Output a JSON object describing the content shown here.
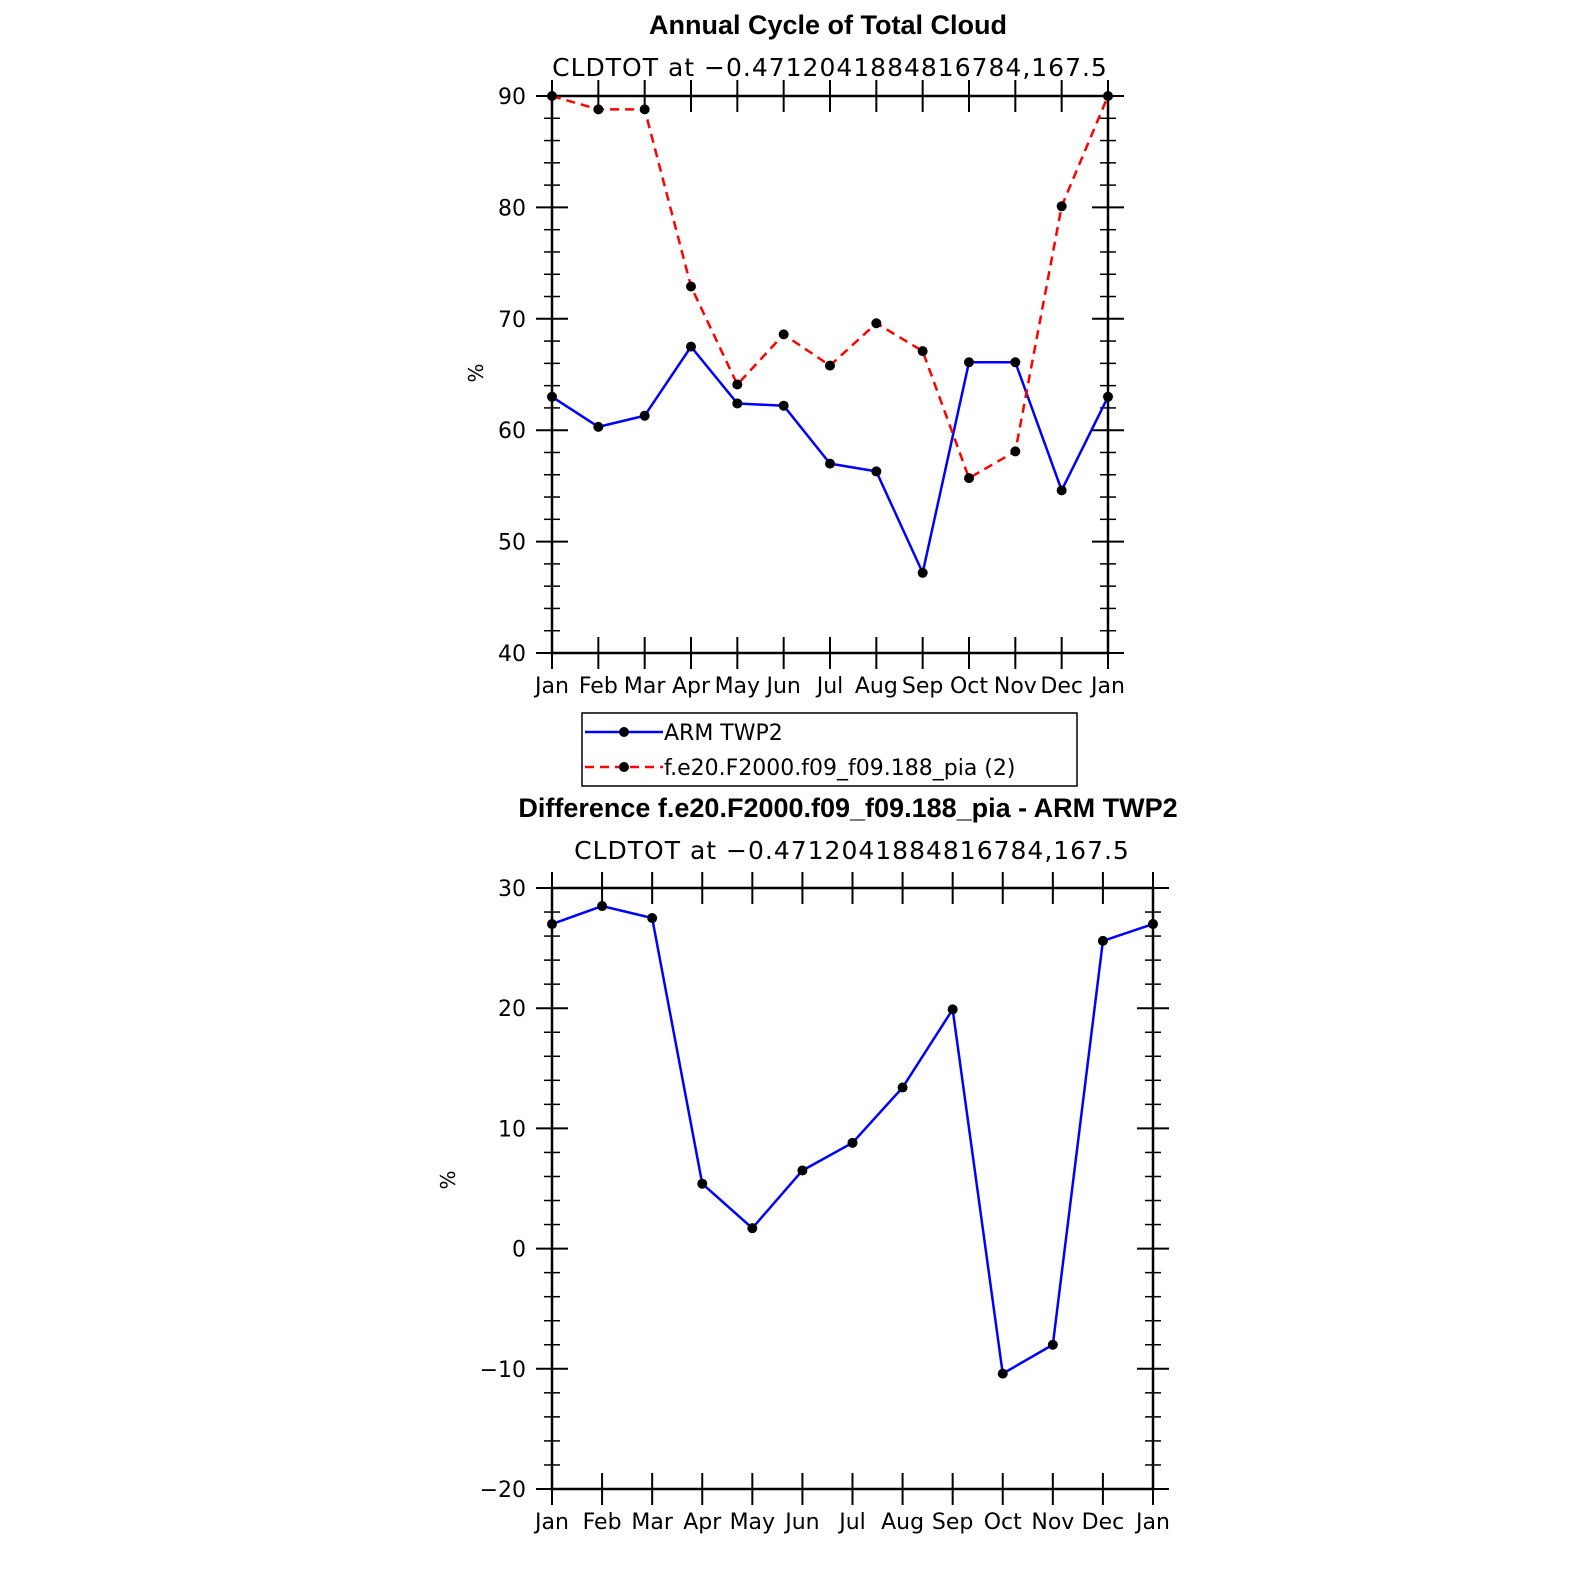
{
  "chart_data": [
    {
      "type": "line",
      "title": "Annual Cycle of Total Cloud",
      "subtitle": "CLDTOT at −0.4712041884816784,167.5",
      "xlabel": "",
      "ylabel": "%",
      "categories": [
        "Jan",
        "Feb",
        "Mar",
        "Apr",
        "May",
        "Jun",
        "Jul",
        "Aug",
        "Sep",
        "Oct",
        "Nov",
        "Dec",
        "Jan"
      ],
      "ylim": [
        40,
        90
      ],
      "yticks": [
        40,
        50,
        60,
        70,
        80,
        90
      ],
      "ytick_labels": [
        "40",
        "50",
        "60",
        "70",
        "80",
        "90"
      ],
      "grid": false,
      "legend_position": "bottom",
      "series": [
        {
          "name": "ARM TWP2",
          "color": "#0000ff",
          "dash": "solid",
          "values": [
            63.0,
            60.3,
            61.3,
            67.5,
            62.4,
            62.2,
            57.0,
            56.3,
            47.2,
            66.1,
            66.1,
            54.6,
            63.0
          ]
        },
        {
          "name": "f.e20.F2000.f09_f09.188_pia (2)",
          "color": "#ff0000",
          "dash": "dashed",
          "values": [
            90.0,
            88.8,
            88.8,
            72.9,
            64.1,
            68.6,
            65.8,
            69.6,
            67.1,
            55.7,
            58.1,
            80.1,
            90.0
          ]
        }
      ]
    },
    {
      "type": "line",
      "title": "Difference f.e20.F2000.f09_f09.188_pia - ARM TWP2",
      "subtitle": "CLDTOT at −0.4712041884816784,167.5",
      "xlabel": "",
      "ylabel": "%",
      "categories": [
        "Jan",
        "Feb",
        "Mar",
        "Apr",
        "May",
        "Jun",
        "Jul",
        "Aug",
        "Sep",
        "Oct",
        "Nov",
        "Dec",
        "Jan"
      ],
      "ylim": [
        -20,
        30
      ],
      "yticks": [
        -20,
        -10,
        0,
        10,
        20,
        30
      ],
      "ytick_labels": [
        "−20",
        "−10",
        "0",
        "10",
        "20",
        "30"
      ],
      "grid": false,
      "series": [
        {
          "color": "#0000ff",
          "dash": "solid",
          "values": [
            27.0,
            28.5,
            27.5,
            5.4,
            1.7,
            6.5,
            8.8,
            13.4,
            19.9,
            -10.4,
            -8.0,
            25.6,
            27.0
          ]
        }
      ]
    }
  ]
}
